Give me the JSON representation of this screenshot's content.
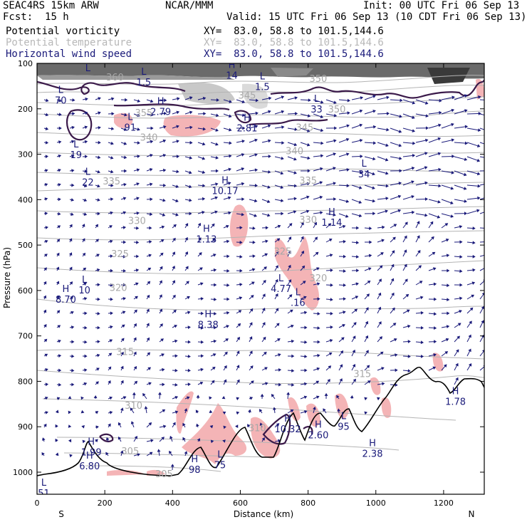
{
  "header": {
    "model": "SEAC4RS 15km ARW",
    "producer": "NCAR/MMM",
    "init": "Init: 00 UTC Fri 06 Sep 13",
    "fcst_label": "Fcst:",
    "fcst_value": "15 h",
    "valid": "Valid: 15 UTC Fri 06 Sep 13 (10 CDT Fri 06 Sep 13)",
    "fields": [
      {
        "name": "Potential vorticity",
        "xy": "XY=  83.0, 58.8 to 101.5,144.6",
        "color": "#000000"
      },
      {
        "name": "Potential temperature",
        "xy": "XY=  83.0, 58.8 to 101.5,144.6",
        "color": "#b8b8b8"
      },
      {
        "name": "Horizontal wind speed",
        "xy": "XY=  83.0, 58.8 to 101.5,144.6",
        "color": "#1a1a7a"
      }
    ]
  },
  "colors": {
    "frame": "#000000",
    "theta": "#a8a8a8",
    "pv": "#3b1a4a",
    "wind": "#1a1a7a",
    "pink": "#f4b4b6",
    "terrain": "#000000"
  },
  "chart_data": {
    "type": "cross-section",
    "xlabel": "Distance (km)",
    "ylabel": "Pressure (hPa)",
    "xlim": [
      0,
      1320
    ],
    "ylim": [
      1050,
      100
    ],
    "x_ticks": [
      0,
      200,
      400,
      600,
      800,
      1000,
      1200
    ],
    "y_ticks": [
      100,
      200,
      300,
      400,
      500,
      600,
      700,
      800,
      900,
      1000
    ],
    "endpoints": {
      "left": "S",
      "right": "N"
    },
    "theta_labels": [
      {
        "text": "360",
        "x": 230,
        "p": 130
      },
      {
        "text": "355",
        "x": 315,
        "p": 208
      },
      {
        "text": "350",
        "x": 830,
        "p": 133
      },
      {
        "text": "345",
        "x": 620,
        "p": 170
      },
      {
        "text": "350",
        "x": 885,
        "p": 200
      },
      {
        "text": "345",
        "x": 790,
        "p": 240
      },
      {
        "text": "340",
        "x": 330,
        "p": 262
      },
      {
        "text": "340",
        "x": 760,
        "p": 292
      },
      {
        "text": "335",
        "x": 220,
        "p": 359
      },
      {
        "text": "335",
        "x": 800,
        "p": 357
      },
      {
        "text": "330",
        "x": 295,
        "p": 446
      },
      {
        "text": "330",
        "x": 800,
        "p": 443
      },
      {
        "text": "325",
        "x": 245,
        "p": 519
      },
      {
        "text": "325",
        "x": 725,
        "p": 513
      },
      {
        "text": "320",
        "x": 240,
        "p": 593
      },
      {
        "text": "320",
        "x": 830,
        "p": 572
      },
      {
        "text": "315",
        "x": 260,
        "p": 734
      },
      {
        "text": "315",
        "x": 960,
        "p": 783
      },
      {
        "text": "310",
        "x": 285,
        "p": 853
      },
      {
        "text": "310",
        "x": 650,
        "p": 902
      },
      {
        "text": "305",
        "x": 275,
        "p": 953
      },
      {
        "text": "305",
        "x": 375,
        "p": 1003
      }
    ],
    "extrema": [
      {
        "kind": "L",
        "value": "70",
        "x": 70,
        "p": 165
      },
      {
        "kind": "L",
        "value": "",
        "x": 150,
        "p": 117
      },
      {
        "kind": "L",
        "value": "1.5",
        "x": 315,
        "p": 125
      },
      {
        "kind": "H",
        "value": "2.79",
        "x": 365,
        "p": 190
      },
      {
        "kind": "L",
        "value": "91",
        "x": 275,
        "p": 225
      },
      {
        "kind": "H",
        "value": "14",
        "x": 575,
        "p": 110
      },
      {
        "kind": "L",
        "value": "1.5",
        "x": 665,
        "p": 135
      },
      {
        "kind": "H",
        "value": "2.81",
        "x": 620,
        "p": 226
      },
      {
        "kind": "L",
        "value": "33",
        "x": 825,
        "p": 185
      },
      {
        "kind": "L",
        "value": "19",
        "x": 115,
        "p": 285
      },
      {
        "kind": "L",
        "value": "22",
        "x": 150,
        "p": 345
      },
      {
        "kind": "H",
        "value": "10.17",
        "x": 555,
        "p": 364
      },
      {
        "kind": "L",
        "value": "34",
        "x": 965,
        "p": 327
      },
      {
        "kind": "H",
        "value": "1.13",
        "x": 500,
        "p": 471
      },
      {
        "kind": "H",
        "value": "1.14",
        "x": 870,
        "p": 434
      },
      {
        "kind": "L",
        "value": "4.77",
        "x": 720,
        "p": 580
      },
      {
        "kind": "L",
        "value": ".16",
        "x": 770,
        "p": 610
      },
      {
        "kind": "L",
        "value": "10",
        "x": 140,
        "p": 583
      },
      {
        "kind": "H",
        "value": "8.70",
        "x": 85,
        "p": 603
      },
      {
        "kind": "H",
        "value": "8.38",
        "x": 505,
        "p": 659
      },
      {
        "kind": "H",
        "value": "1.78",
        "x": 1235,
        "p": 828
      },
      {
        "kind": "H",
        "value": "10.32",
        "x": 740,
        "p": 889
      },
      {
        "kind": "H",
        "value": "2.60",
        "x": 830,
        "p": 902
      },
      {
        "kind": "L",
        "value": "95",
        "x": 905,
        "p": 883
      },
      {
        "kind": "H",
        "value": "2.38",
        "x": 990,
        "p": 943
      },
      {
        "kind": "H",
        "value": "1.99",
        "x": 160,
        "p": 940
      },
      {
        "kind": "H",
        "value": "6.80",
        "x": 155,
        "p": 970
      },
      {
        "kind": "H",
        "value": "98",
        "x": 465,
        "p": 978
      },
      {
        "kind": "L",
        "value": "75",
        "x": 540,
        "p": 968
      },
      {
        "kind": "L",
        "value": "51",
        "x": 20,
        "p": 1030
      }
    ]
  }
}
